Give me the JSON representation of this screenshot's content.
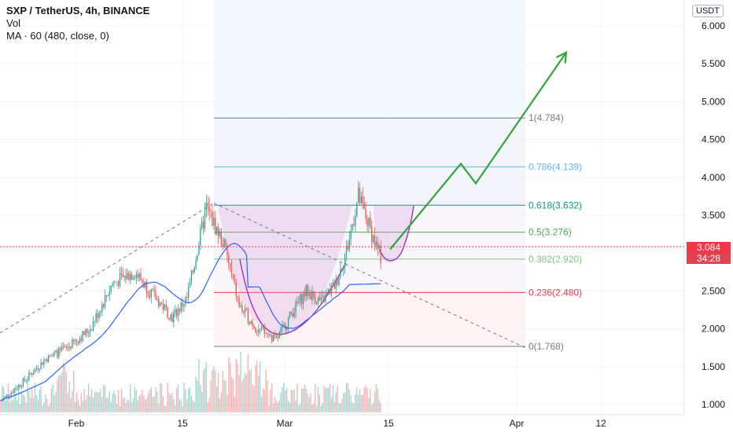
{
  "legend": {
    "symbol": "SXP / TetherUS, 4h, BINANCE",
    "vol": "Vol",
    "ma": "MA · 60 (480, close, 0)"
  },
  "currency_button": "USDT",
  "last_price": {
    "value": "3.084",
    "countdown": "34:28"
  },
  "colors": {
    "up": "#26a69a",
    "down": "#ef5350",
    "ma": "#2962ff",
    "cup": "#9c27b0",
    "arrow": "#2fa53a",
    "price_line": "#f23645"
  },
  "chart_data": {
    "type": "candlestick",
    "y_range": [
      0.9,
      6.3
    ],
    "y_ticks": [
      "1.000",
      "1.500",
      "2.000",
      "2.500",
      "3.000",
      "3.500",
      "4.000",
      "4.500",
      "5.000",
      "5.500",
      "6.000"
    ],
    "x_ticks": [
      "Feb",
      "15",
      "Mar",
      "15",
      "Apr",
      "12"
    ],
    "fib_levels": [
      {
        "ratio": 1,
        "price": 4.784,
        "label": "1(4.784)",
        "color": "#787b86"
      },
      {
        "ratio": 0.786,
        "price": 4.139,
        "label": "0.786(4.139)",
        "color": "#64b5f6"
      },
      {
        "ratio": 0.618,
        "price": 3.632,
        "label": "0.618(3.632)",
        "color": "#089981"
      },
      {
        "ratio": 0.5,
        "price": 3.276,
        "label": "0.5(3.276)",
        "color": "#4caf50"
      },
      {
        "ratio": 0.382,
        "price": 2.92,
        "label": "0.382(2.920)",
        "color": "#81c784"
      },
      {
        "ratio": 0.236,
        "price": 2.48,
        "label": "0.236(2.480)",
        "color": "#f23645"
      },
      {
        "ratio": 0,
        "price": 1.768,
        "label": "0(1.768)",
        "color": "#787b86"
      }
    ],
    "price_path_key": [
      [
        0,
        1.05
      ],
      [
        15,
        1.3
      ],
      [
        30,
        1.6
      ],
      [
        45,
        1.75
      ],
      [
        60,
        2.0
      ],
      [
        75,
        2.6
      ],
      [
        90,
        2.75
      ],
      [
        100,
        2.5
      ],
      [
        115,
        2.15
      ],
      [
        125,
        2.4
      ],
      [
        138,
        3.6
      ],
      [
        150,
        3.1
      ],
      [
        160,
        2.3
      ],
      [
        172,
        2.0
      ],
      [
        185,
        1.85
      ],
      [
        195,
        2.2
      ],
      [
        205,
        2.5
      ],
      [
        215,
        2.35
      ],
      [
        225,
        2.6
      ],
      [
        233,
        3.1
      ],
      [
        240,
        3.75
      ],
      [
        250,
        3.2
      ],
      [
        255,
        2.95
      ]
    ],
    "last_price": 3.084,
    "projection_arrow": [
      [
        496,
        3.05
      ],
      [
        586,
        4.18
      ],
      [
        605,
        3.92
      ],
      [
        720,
        5.65
      ]
    ]
  }
}
